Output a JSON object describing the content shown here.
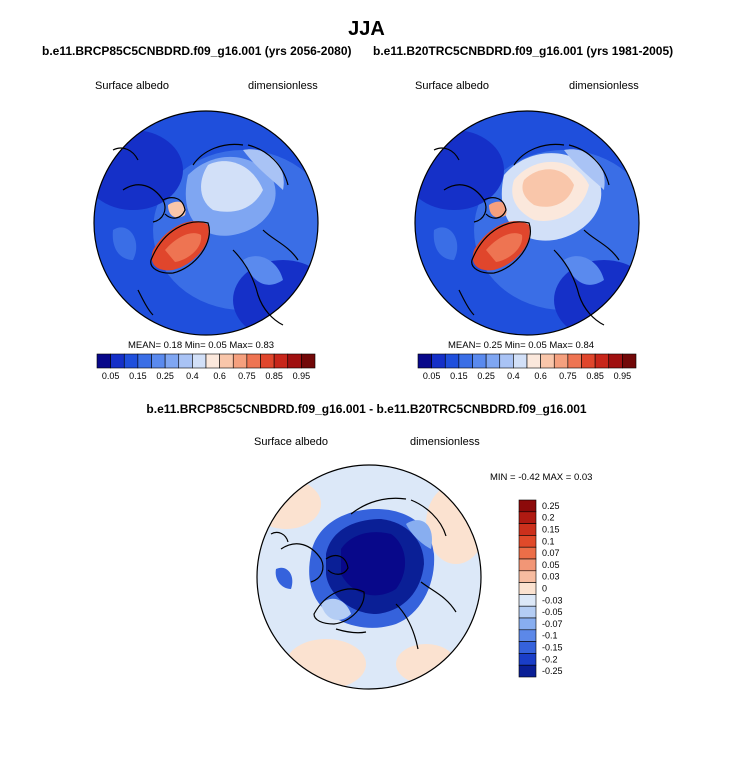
{
  "title": "JJA",
  "panels": [
    {
      "title": "b.e11.BRCP85C5CNBDRD.f09_g16.001 (yrs 2056-2080)",
      "left_label": "Surface albedo",
      "right_label": "dimensionless",
      "stats": "MEAN=  0.18  Min=  0.05  Max=  0.83"
    },
    {
      "title": "b.e11.B20TRC5CNBDRD.f09_g16.001 (yrs 1981-2005)",
      "left_label": "Surface albedo",
      "right_label": "dimensionless",
      "stats": "MEAN=  0.25  Min=  0.05  Max=  0.84"
    },
    {
      "title": "b.e11.BRCP85C5CNBDRD.f09_g16.001 - b.e11.B20TRC5CNBDRD.f09_g16.001",
      "left_label": "Surface albedo",
      "right_label": "dimensionless",
      "stats": "MIN =  -0.42 MAX =  0.03"
    }
  ],
  "colorbar_horizontal": {
    "colors": [
      "#08088a",
      "#1530c8",
      "#1f4fdc",
      "#3a6ee6",
      "#5a8aee",
      "#7fa6f2",
      "#a9c3f5",
      "#d2e0f8",
      "#fbe8dc",
      "#f9c6aa",
      "#f5a07e",
      "#ee7452",
      "#e0462c",
      "#c8261a",
      "#a01010",
      "#720808"
    ],
    "labels": [
      "0.05",
      "0.15",
      "0.25",
      "0.4",
      "0.6",
      "0.75",
      "0.85",
      "0.95"
    ]
  },
  "colorbar_vertical": {
    "colors": [
      "#8c0a0a",
      "#b01a12",
      "#cc301c",
      "#e04a2a",
      "#ec6e48",
      "#f29676",
      "#f7bca0",
      "#fbe2d0",
      "#dce8f8",
      "#b4cdf4",
      "#88aef0",
      "#5c88e8",
      "#3562dc",
      "#1a3ec8",
      "#0a1f96"
    ],
    "labels": [
      "0.25",
      "0.2",
      "0.15",
      "0.1",
      "0.07",
      "0.05",
      "0.03",
      "0",
      "-0.03",
      "-0.05",
      "-0.07",
      "-0.1",
      "-0.15",
      "-0.2",
      "-0.25"
    ]
  }
}
